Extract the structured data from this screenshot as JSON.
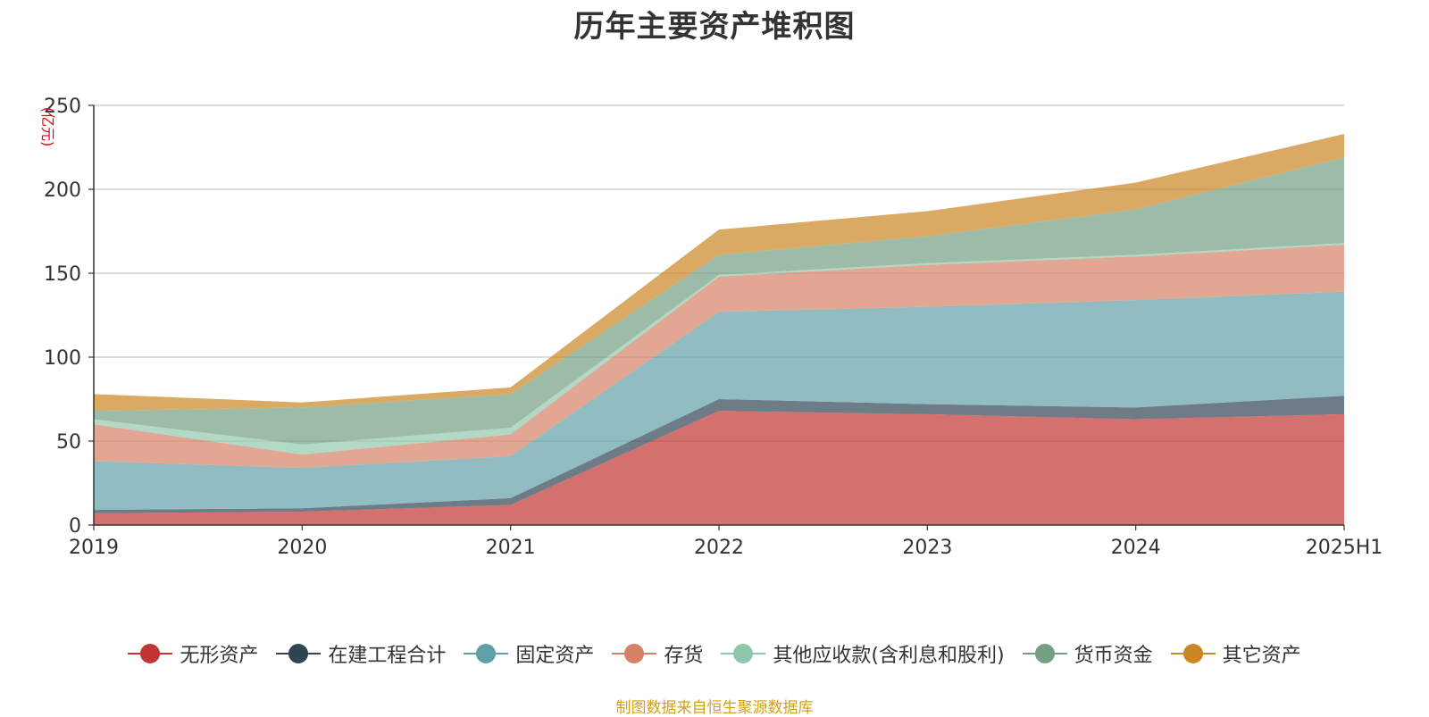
{
  "chart_data": {
    "type": "area",
    "stacked": true,
    "title": "历年主要资产堆积图",
    "ylabel": "(亿元)",
    "xlabel": "",
    "categories": [
      "2019",
      "2020",
      "2021",
      "2022",
      "2023",
      "2024",
      "2025H1"
    ],
    "ylim": [
      0,
      250
    ],
    "yticks": [
      0,
      50,
      100,
      150,
      200,
      250
    ],
    "grid": true,
    "legend_position": "bottom",
    "series": [
      {
        "name": "无形资产",
        "color": "#c23531",
        "values": [
          7,
          8,
          12,
          68,
          66,
          63,
          66
        ]
      },
      {
        "name": "在建工程合计",
        "color": "#2f4554",
        "values": [
          2,
          2,
          4,
          7,
          6,
          7,
          11
        ]
      },
      {
        "name": "固定资产",
        "color": "#61a0a8",
        "values": [
          29,
          24,
          25,
          52,
          58,
          64,
          62
        ]
      },
      {
        "name": "存货",
        "color": "#d48265",
        "values": [
          22,
          8,
          13,
          21,
          25,
          26,
          28
        ]
      },
      {
        "name": "其他应收款(含利息和股利)",
        "color": "#91c7ae",
        "values": [
          3,
          6,
          4,
          1,
          1,
          1,
          1
        ]
      },
      {
        "name": "货币资金",
        "color": "#749f83",
        "values": [
          5,
          22,
          20,
          12,
          16,
          27,
          51
        ]
      },
      {
        "name": "其它资产",
        "color": "#ca8622",
        "values": [
          10,
          3,
          4,
          15,
          15,
          16,
          14
        ]
      }
    ]
  },
  "source": "制图数据来自恒生聚源数据库"
}
